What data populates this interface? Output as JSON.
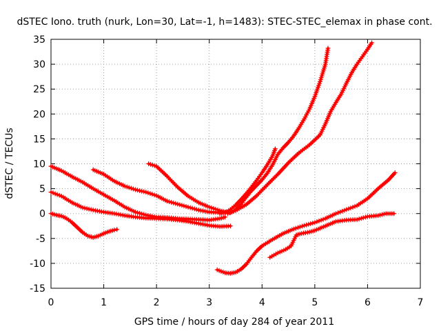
{
  "chart_data": {
    "type": "scatter",
    "title": "dSTEC Iono. truth (nurk, Lon=30, Lat=-1, h=1483): STEC-STEC_elemax in phase cont.",
    "xlabel": "GPS time / hours of day 284 of year 2011",
    "ylabel": "dSTEC  / TECUs",
    "xlim": [
      0,
      7
    ],
    "ylim": [
      -15,
      35
    ],
    "xticks": [
      "0",
      "1",
      "2",
      "3",
      "4",
      "5",
      "6",
      "7"
    ],
    "yticks": [
      "-15",
      "-10",
      "-5",
      "0",
      "5",
      "10",
      "15",
      "20",
      "25",
      "30",
      "35"
    ],
    "grid": true,
    "marker": "plus",
    "color": "#ff0000",
    "series": [
      {
        "x": [
          0.0,
          0.1,
          0.2,
          0.3,
          0.4,
          0.5,
          0.6,
          0.7,
          0.8,
          0.9,
          1.0,
          1.1,
          1.2,
          1.25
        ],
        "y": [
          0.0,
          -0.3,
          -0.5,
          -1.0,
          -1.8,
          -2.8,
          -3.8,
          -4.5,
          -4.8,
          -4.5,
          -4.0,
          -3.6,
          -3.3,
          -3.2
        ]
      },
      {
        "x": [
          0.0,
          0.2,
          0.4,
          0.6,
          0.8,
          1.0,
          1.2,
          1.4,
          1.6,
          1.8,
          2.0,
          2.2,
          2.4,
          2.6,
          2.8,
          3.0,
          3.2,
          3.4
        ],
        "y": [
          4.3,
          3.5,
          2.2,
          1.2,
          0.7,
          0.3,
          0.0,
          -0.4,
          -0.7,
          -0.9,
          -1.0,
          -1.1,
          -1.3,
          -1.6,
          -2.0,
          -2.4,
          -2.6,
          -2.5
        ]
      },
      {
        "x": [
          0.0,
          0.2,
          0.4,
          0.6,
          0.8,
          1.0,
          1.2,
          1.4,
          1.6,
          1.8,
          2.0,
          2.2,
          2.4,
          2.6,
          2.8,
          3.0,
          3.2,
          3.3
        ],
        "y": [
          9.5,
          8.6,
          7.4,
          6.3,
          5.0,
          3.8,
          2.6,
          1.3,
          0.3,
          -0.3,
          -0.7,
          -0.8,
          -1.0,
          -1.1,
          -1.2,
          -1.3,
          -1.0,
          -0.7
        ]
      },
      {
        "x": [
          0.8,
          1.0,
          1.2,
          1.4,
          1.6,
          1.8,
          2.0,
          2.2,
          2.4,
          2.6,
          2.8,
          3.0,
          3.2,
          3.3
        ],
        "y": [
          8.8,
          7.9,
          6.5,
          5.5,
          4.8,
          4.3,
          3.6,
          2.5,
          1.9,
          1.3,
          0.7,
          0.3,
          0.2,
          0.2
        ]
      },
      {
        "x": [
          1.85,
          2.0,
          2.2,
          2.4,
          2.6,
          2.8,
          3.0,
          3.2,
          3.35
        ],
        "y": [
          10.0,
          9.5,
          7.5,
          5.3,
          3.5,
          2.2,
          1.3,
          0.6,
          0.2
        ]
      },
      {
        "x": [
          3.2,
          3.3,
          3.4,
          3.5,
          3.6,
          3.7,
          3.8,
          3.9,
          4.0,
          4.1,
          4.2,
          4.25
        ],
        "y": [
          0.0,
          0.2,
          0.8,
          1.7,
          2.8,
          4.0,
          5.3,
          6.7,
          8.2,
          9.8,
          11.6,
          13.0
        ]
      },
      {
        "x": [
          3.35,
          3.5,
          3.7,
          3.9,
          4.1,
          4.3,
          4.5,
          4.7,
          4.9,
          5.1,
          5.2,
          5.3,
          5.4,
          5.5,
          5.6,
          5.7,
          5.8,
          5.9,
          6.0,
          6.08
        ],
        "y": [
          0.0,
          0.6,
          1.8,
          3.6,
          5.8,
          7.9,
          10.2,
          12.2,
          13.8,
          15.8,
          18.0,
          20.5,
          22.3,
          24.0,
          26.2,
          28.3,
          30.0,
          31.5,
          33.0,
          34.3
        ]
      },
      {
        "x": [
          3.4,
          3.5,
          3.6,
          3.7,
          3.8,
          3.9,
          4.0,
          4.1,
          4.2,
          4.3,
          4.4,
          4.5,
          4.6,
          4.7,
          4.8,
          4.9,
          5.0,
          5.1,
          5.2,
          5.25
        ],
        "y": [
          0.2,
          0.8,
          1.9,
          3.3,
          4.6,
          5.7,
          6.8,
          8.1,
          9.8,
          11.9,
          13.2,
          14.3,
          15.6,
          17.2,
          19.0,
          21.0,
          23.5,
          26.5,
          30.0,
          33.2
        ]
      },
      {
        "x": [
          3.15,
          3.3,
          3.4,
          3.5,
          3.6,
          3.7,
          3.8,
          3.9,
          4.0,
          4.2,
          4.4,
          4.6,
          4.8,
          5.0,
          5.2,
          5.4,
          5.6,
          5.8,
          6.0,
          6.2,
          6.4,
          6.52
        ],
        "y": [
          -11.3,
          -11.9,
          -12.0,
          -11.8,
          -11.2,
          -10.2,
          -8.8,
          -7.5,
          -6.5,
          -5.2,
          -4.0,
          -3.1,
          -2.4,
          -1.8,
          -1.0,
          0.0,
          0.8,
          1.6,
          3.0,
          5.0,
          6.8,
          8.2
        ]
      },
      {
        "x": [
          4.15,
          4.3,
          4.45,
          4.55,
          4.65,
          4.75,
          4.9,
          5.0,
          5.2,
          5.4,
          5.6,
          5.8,
          6.0,
          6.2,
          6.35,
          6.5
        ],
        "y": [
          -8.8,
          -7.9,
          -7.2,
          -6.5,
          -4.3,
          -4.0,
          -3.7,
          -3.4,
          -2.5,
          -1.6,
          -1.3,
          -1.2,
          -0.6,
          -0.4,
          0.0,
          0.0
        ]
      }
    ]
  }
}
